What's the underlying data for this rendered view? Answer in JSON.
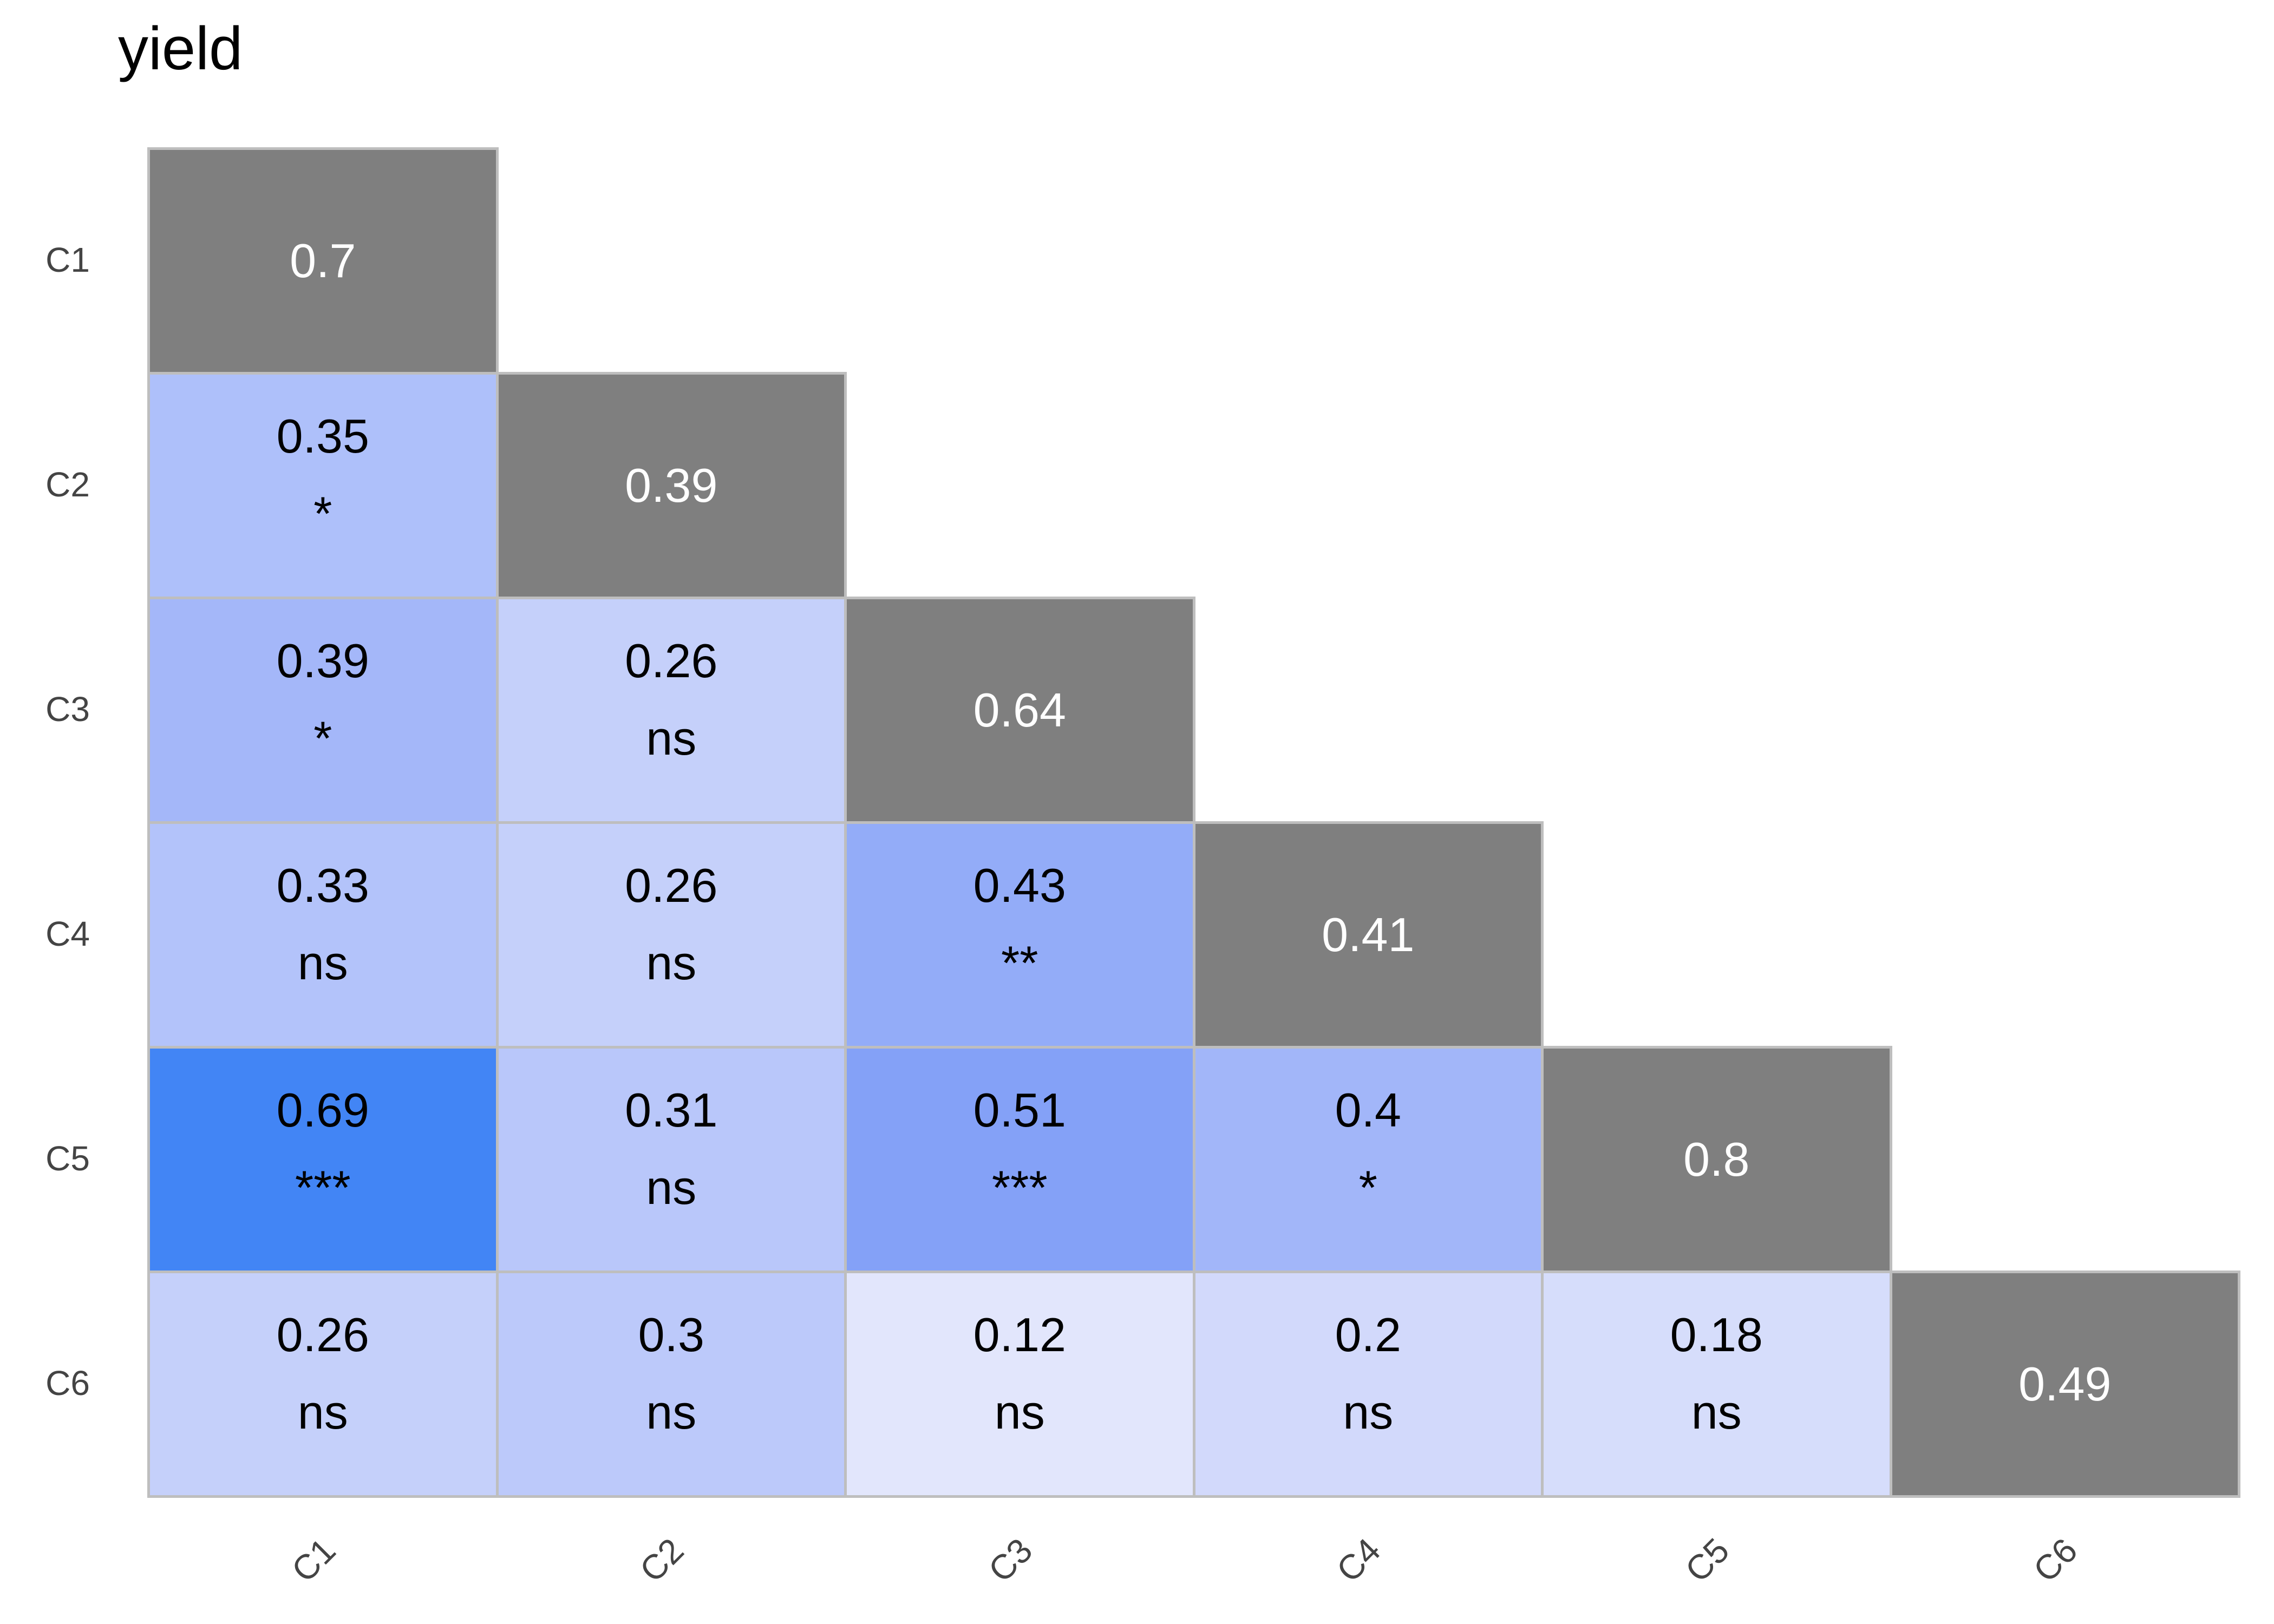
{
  "title": "yield",
  "colors": {
    "background": "#FFFFFF",
    "grid_border": "#BEBEBE",
    "diagonal_fill": "#7F7F7F",
    "diagonal_text": "#FFFFFF",
    "cell_text": "#000000",
    "axis_label_text": "#444444",
    "title_text": "#000000",
    "scale_low": "#E2E6FC",
    "scale_high": "#4285F5"
  },
  "chart_data": {
    "type": "heatmap",
    "subtype": "correlation-matrix-lower-triangle",
    "title": "yield",
    "legend": "none",
    "grid": "off",
    "row_labels": [
      "C1",
      "C2",
      "C3",
      "C4",
      "C5",
      "C6"
    ],
    "col_labels": [
      "C1",
      "C2",
      "C3",
      "C4",
      "C5",
      "C6"
    ],
    "x_tick_rotation_deg": 45,
    "diagonal_values": [
      0.7,
      0.39,
      0.64,
      0.41,
      0.8,
      0.49
    ],
    "cells": [
      {
        "r": 0,
        "c": 0,
        "row": "C1",
        "col": "C1",
        "value": 0.7,
        "label": "0.7",
        "diagonal": true,
        "fill": "#7F7F7F"
      },
      {
        "r": 1,
        "c": 0,
        "row": "C2",
        "col": "C1",
        "value": 0.35,
        "label": "0.35",
        "sig": "*",
        "diagonal": false,
        "fill": "#AEC0FA"
      },
      {
        "r": 1,
        "c": 1,
        "row": "C2",
        "col": "C2",
        "value": 0.39,
        "label": "0.39",
        "diagonal": true,
        "fill": "#7F7F7F"
      },
      {
        "r": 2,
        "c": 0,
        "row": "C3",
        "col": "C1",
        "value": 0.39,
        "label": "0.39",
        "sig": "*",
        "diagonal": false,
        "fill": "#A4B7F9"
      },
      {
        "r": 2,
        "c": 1,
        "row": "C3",
        "col": "C2",
        "value": 0.26,
        "label": "0.26",
        "sig": "ns",
        "diagonal": false,
        "fill": "#C5D0FA"
      },
      {
        "r": 2,
        "c": 2,
        "row": "C3",
        "col": "C3",
        "value": 0.64,
        "label": "0.64",
        "diagonal": true,
        "fill": "#7F7F7F"
      },
      {
        "r": 3,
        "c": 0,
        "row": "C4",
        "col": "C1",
        "value": 0.33,
        "label": "0.33",
        "sig": "ns",
        "diagonal": false,
        "fill": "#B3C3FA"
      },
      {
        "r": 3,
        "c": 1,
        "row": "C4",
        "col": "C2",
        "value": 0.26,
        "label": "0.26",
        "sig": "ns",
        "diagonal": false,
        "fill": "#C5D0FA"
      },
      {
        "r": 3,
        "c": 2,
        "row": "C4",
        "col": "C3",
        "value": 0.43,
        "label": "0.43",
        "sig": "**",
        "diagonal": false,
        "fill": "#93ACF8"
      },
      {
        "r": 3,
        "c": 3,
        "row": "C4",
        "col": "C4",
        "value": 0.41,
        "label": "0.41",
        "diagonal": true,
        "fill": "#7F7F7F"
      },
      {
        "r": 4,
        "c": 0,
        "row": "C5",
        "col": "C1",
        "value": 0.69,
        "label": "0.69",
        "sig": "***",
        "diagonal": false,
        "fill": "#4285F5"
      },
      {
        "r": 4,
        "c": 1,
        "row": "C5",
        "col": "C2",
        "value": 0.31,
        "label": "0.31",
        "sig": "ns",
        "diagonal": false,
        "fill": "#B9C7FA"
      },
      {
        "r": 4,
        "c": 2,
        "row": "C5",
        "col": "C3",
        "value": 0.51,
        "label": "0.51",
        "sig": "***",
        "diagonal": false,
        "fill": "#84A1F7"
      },
      {
        "r": 4,
        "c": 3,
        "row": "C5",
        "col": "C4",
        "value": 0.4,
        "label": "0.4",
        "sig": "*",
        "diagonal": false,
        "fill": "#A2B6F9"
      },
      {
        "r": 4,
        "c": 4,
        "row": "C5",
        "col": "C5",
        "value": 0.8,
        "label": "0.8",
        "diagonal": true,
        "fill": "#7F7F7F"
      },
      {
        "r": 5,
        "c": 0,
        "row": "C6",
        "col": "C1",
        "value": 0.26,
        "label": "0.26",
        "sig": "ns",
        "diagonal": false,
        "fill": "#C5D0FA"
      },
      {
        "r": 5,
        "c": 1,
        "row": "C6",
        "col": "C2",
        "value": 0.3,
        "label": "0.3",
        "sig": "ns",
        "diagonal": false,
        "fill": "#BCC9FA"
      },
      {
        "r": 5,
        "c": 2,
        "row": "C6",
        "col": "C3",
        "value": 0.12,
        "label": "0.12",
        "sig": "ns",
        "diagonal": false,
        "fill": "#E2E6FC"
      },
      {
        "r": 5,
        "c": 3,
        "row": "C6",
        "col": "C4",
        "value": 0.2,
        "label": "0.2",
        "sig": "ns",
        "diagonal": false,
        "fill": "#D2D9FB"
      },
      {
        "r": 5,
        "c": 4,
        "row": "C6",
        "col": "C5",
        "value": 0.18,
        "label": "0.18",
        "sig": "ns",
        "diagonal": false,
        "fill": "#D6DDFB"
      },
      {
        "r": 5,
        "c": 5,
        "row": "C6",
        "col": "C6",
        "value": 0.49,
        "label": "0.49",
        "diagonal": true,
        "fill": "#7F7F7F"
      }
    ]
  }
}
